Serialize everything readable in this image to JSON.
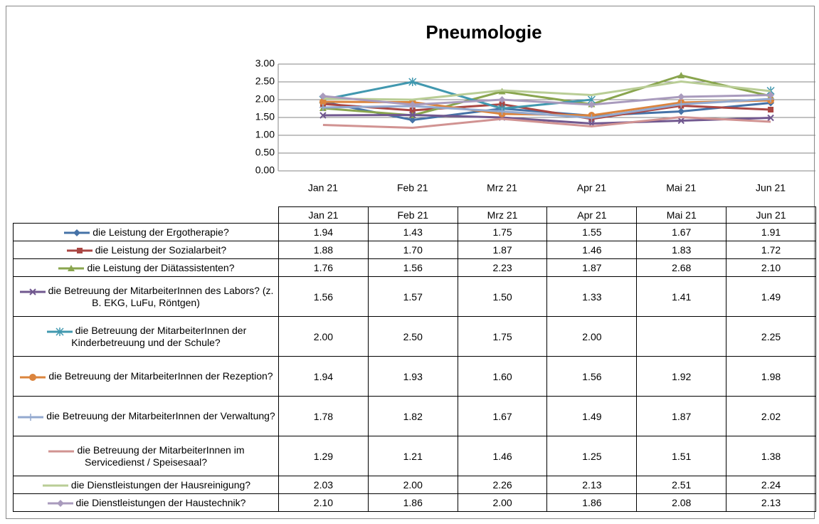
{
  "chart_data": {
    "type": "line",
    "title": "Pneumologie",
    "categories": [
      "Jan 21",
      "Feb 21",
      "Mrz 21",
      "Apr 21",
      "Mai 21",
      "Jun 21"
    ],
    "ylim": [
      0,
      3
    ],
    "yticks": [
      {
        "value": 0,
        "label": "0.00"
      },
      {
        "value": 0.5,
        "label": "0.50"
      },
      {
        "value": 1,
        "label": "1.00"
      },
      {
        "value": 1.5,
        "label": "1.50"
      },
      {
        "value": 2,
        "label": "2.00"
      },
      {
        "value": 2.5,
        "label": "2.50"
      },
      {
        "value": 3,
        "label": "3.00"
      }
    ],
    "grid": true,
    "series": [
      {
        "name": "die Leistung der Ergotherapie?",
        "color": "#4572a7",
        "marker": "diamond",
        "values": [
          1.94,
          1.43,
          1.75,
          1.55,
          1.67,
          1.91
        ],
        "value_labels": [
          "1.94",
          "1.43",
          "1.75",
          "1.55",
          "1.67",
          "1.91"
        ]
      },
      {
        "name": "die Leistung der Sozialarbeit?",
        "color": "#aa4643",
        "marker": "square",
        "values": [
          1.88,
          1.7,
          1.87,
          1.46,
          1.83,
          1.72
        ],
        "value_labels": [
          "1.88",
          "1.70",
          "1.87",
          "1.46",
          "1.83",
          "1.72"
        ]
      },
      {
        "name": "die Leistung der Diätassistenten?",
        "color": "#89a54e",
        "marker": "triangle",
        "values": [
          1.76,
          1.56,
          2.23,
          1.87,
          2.68,
          2.1
        ],
        "value_labels": [
          "1.76",
          "1.56",
          "2.23",
          "1.87",
          "2.68",
          "2.10"
        ]
      },
      {
        "name": "die Betreuung der MitarbeiterInnen des Labors? (z. B. EKG, LuFu, Röntgen)",
        "color": "#71588f",
        "marker": "x",
        "values": [
          1.56,
          1.57,
          1.5,
          1.33,
          1.41,
          1.49
        ],
        "value_labels": [
          "1.56",
          "1.57",
          "1.50",
          "1.33",
          "1.41",
          "1.49"
        ]
      },
      {
        "name": "die Betreuung der MitarbeiterInnen der Kinderbetreuung und der Schule?",
        "color": "#4198af",
        "marker": "star",
        "values": [
          2.0,
          2.5,
          1.75,
          2.0,
          null,
          2.25
        ],
        "value_labels": [
          "2.00",
          "2.50",
          "1.75",
          "2.00",
          null,
          "2.25"
        ]
      },
      {
        "name": "die Betreuung der MitarbeiterInnen der Rezeption?",
        "color": "#db843d",
        "marker": "circle",
        "values": [
          1.94,
          1.93,
          1.6,
          1.56,
          1.92,
          1.98
        ],
        "value_labels": [
          "1.94",
          "1.93",
          "1.60",
          "1.56",
          "1.92",
          "1.98"
        ]
      },
      {
        "name": "die Betreuung der MitarbeiterInnen der Verwaltung?",
        "color": "#93a9cf",
        "marker": "plus",
        "values": [
          1.78,
          1.82,
          1.67,
          1.49,
          1.87,
          2.02
        ],
        "value_labels": [
          "1.78",
          "1.82",
          "1.67",
          "1.49",
          "1.87",
          "2.02"
        ]
      },
      {
        "name": "die Betreuung der MitarbeiterInnen im Servicedienst / Speisesaal?",
        "color": "#d19392",
        "marker": "none",
        "values": [
          1.29,
          1.21,
          1.46,
          1.25,
          1.51,
          1.38
        ],
        "value_labels": [
          "1.29",
          "1.21",
          "1.46",
          "1.25",
          "1.51",
          "1.38"
        ]
      },
      {
        "name": "die Dienstleistungen der Hausreinigung?",
        "color": "#b9cd96",
        "marker": "none",
        "values": [
          2.03,
          2.0,
          2.26,
          2.13,
          2.51,
          2.24
        ],
        "value_labels": [
          "2.03",
          "2.00",
          "2.26",
          "2.13",
          "2.51",
          "2.24"
        ]
      },
      {
        "name": "die Dienstleistungen der Haustechnik?",
        "color": "#a99bbd",
        "marker": "diamond",
        "values": [
          2.1,
          1.86,
          2.0,
          1.86,
          2.08,
          2.13
        ],
        "value_labels": [
          "2.10",
          "1.86",
          "2.00",
          "1.86",
          "2.08",
          "2.13"
        ]
      }
    ]
  }
}
